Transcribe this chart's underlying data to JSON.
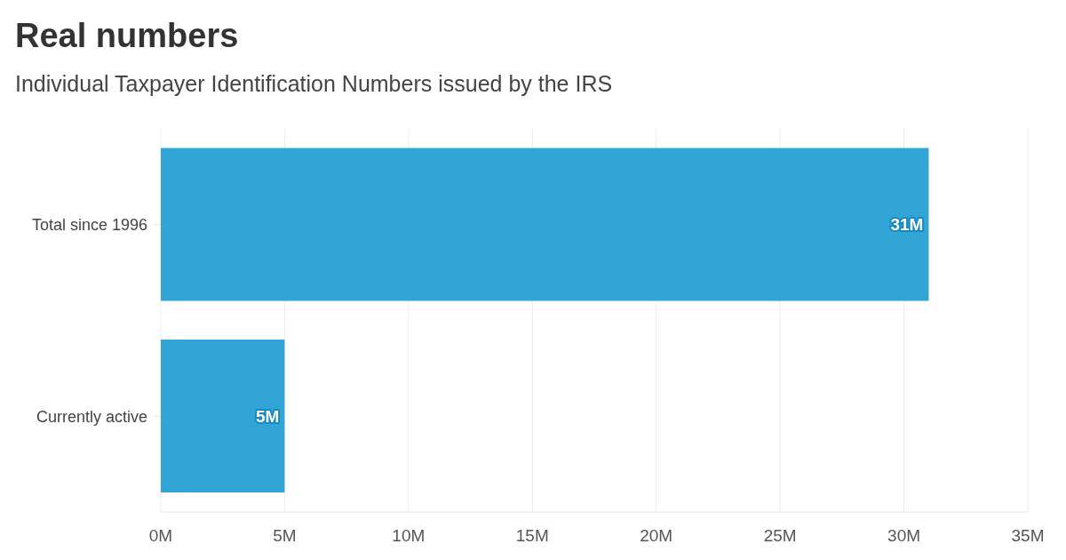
{
  "chart_data": {
    "type": "bar",
    "title": "Real numbers",
    "subtitle": "Individual Taxpayer Identification Numbers issued by the IRS",
    "orientation": "horizontal",
    "categories": [
      "Total since 1996",
      "Currently active"
    ],
    "values": [
      31,
      5
    ],
    "color": "#32a5d7",
    "xlim": [
      0,
      35
    ],
    "xticks": [
      {
        "value": 0,
        "label": "0M"
      },
      {
        "value": 5,
        "label": "5M"
      },
      {
        "value": 10,
        "label": "10M"
      },
      {
        "value": 15,
        "label": "15M"
      },
      {
        "value": 20,
        "label": "20M"
      },
      {
        "value": 25,
        "label": "25M"
      },
      {
        "value": 30,
        "label": "30M"
      },
      {
        "value": 35,
        "label": "35M"
      }
    ],
    "grid": "x",
    "value_labels": [
      "31M",
      "5M"
    ]
  }
}
